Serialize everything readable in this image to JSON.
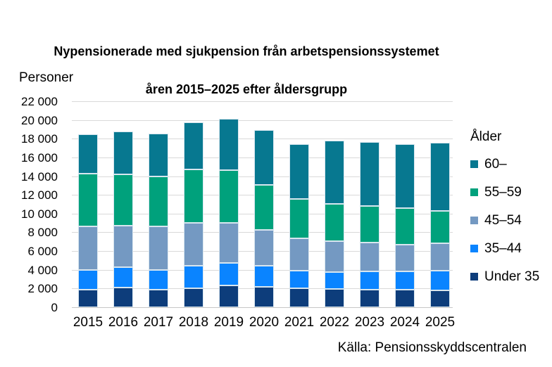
{
  "page": {
    "title_line1": "Nypensionerade med sjukpension från arbetspensionssystemet",
    "title_line2": "åren 2015–2025 efter åldersgrupp",
    "y_unit_label": "Personer",
    "source": "Källa: Pensionsskyddscentralen"
  },
  "legend": {
    "title": "Ålder",
    "position": "right",
    "items": [
      {
        "label": "60–",
        "color": "#077890"
      },
      {
        "label": "55–59",
        "color": "#00A17C"
      },
      {
        "label": "45–54",
        "color": "#7499C2"
      },
      {
        "label": "35–44",
        "color": "#0A84FF"
      },
      {
        "label": "Under 35",
        "color": "#0D3D7B"
      }
    ]
  },
  "chart_data": {
    "type": "bar",
    "stacked": true,
    "title": "Nypensionerade med sjukpension från arbetspensionssystemet åren 2015–2025 efter åldersgrupp",
    "xlabel": "",
    "ylabel": "Personer",
    "categories": [
      "2015",
      "2016",
      "2017",
      "2018",
      "2019",
      "2020",
      "2021",
      "2022",
      "2023",
      "2024",
      "2025"
    ],
    "series_order": "bottom_to_top",
    "series": [
      {
        "name": "Under 35",
        "color": "#0D3D7B",
        "values": [
          1900,
          2100,
          1900,
          2050,
          2300,
          2200,
          2000,
          1950,
          1900,
          1900,
          1800
        ]
      },
      {
        "name": "35–44",
        "color": "#0A84FF",
        "values": [
          2050,
          2150,
          2050,
          2400,
          2400,
          2200,
          1900,
          1800,
          1950,
          1950,
          2100
        ]
      },
      {
        "name": "45–54",
        "color": "#7499C2",
        "values": [
          4700,
          4450,
          4700,
          4550,
          4350,
          3900,
          3450,
          3300,
          3050,
          2850,
          2950
        ]
      },
      {
        "name": "55–59",
        "color": "#00A17C",
        "values": [
          5600,
          5500,
          5350,
          5750,
          5600,
          4750,
          4200,
          4000,
          3900,
          3850,
          3450
        ]
      },
      {
        "name": "60–",
        "color": "#077890",
        "values": [
          4250,
          4550,
          4550,
          5000,
          5500,
          5900,
          5850,
          6750,
          6850,
          6850,
          7250
        ]
      }
    ],
    "totals": [
      18500,
      18750,
      18550,
      19750,
      20150,
      18950,
      17400,
      17800,
      17650,
      17400,
      17550
    ],
    "ylim": [
      0,
      22000
    ],
    "ytick_step": 2000,
    "ytick_format": "space_thousands",
    "grid": "horizontal",
    "legend_position": "right",
    "source": "Källa: Pensionsskyddscentralen",
    "colors": {
      "gridline": "#D9D9D9",
      "text": "#000000",
      "background": "#FFFFFF"
    }
  }
}
